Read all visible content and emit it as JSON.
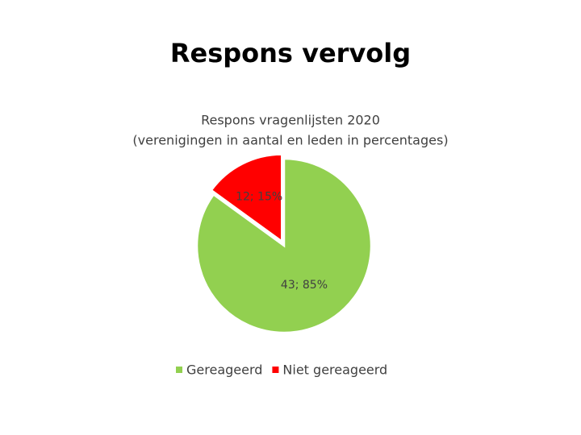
{
  "slide_title": "Respons vervolg",
  "chart_data": {
    "type": "pie",
    "title": "Respons vragenlijsten 2020",
    "subtitle": "(verenigingen in aantal en leden in percentages)",
    "categories": [
      "Gereageerd",
      "Niet gereageerd"
    ],
    "values": [
      85,
      15
    ],
    "counts": [
      43,
      12
    ],
    "value_labels": [
      "43; 85%",
      "12; 15%"
    ],
    "colors": [
      "#92d050",
      "#ff0000"
    ],
    "legend": "bottom"
  }
}
